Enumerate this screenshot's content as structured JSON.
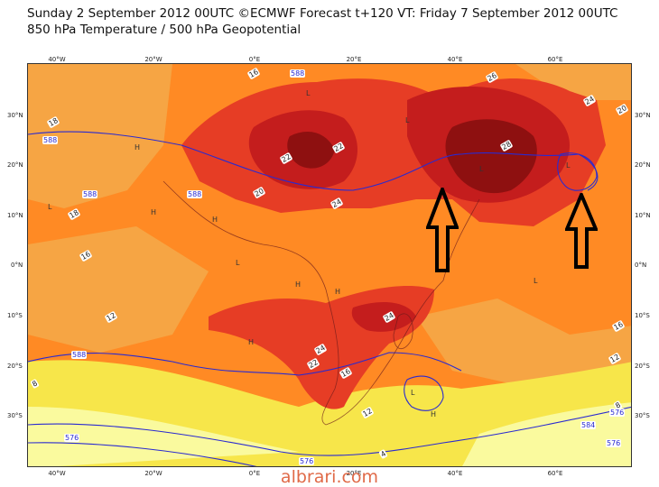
{
  "header": {
    "title_line1": "Sunday 2 September 2012 00UTC ©ECMWF Forecast t+120 VT: Friday 7 September 2012 00UTC",
    "title_line2": "850 hPa Temperature / 500 hPa Geopotential"
  },
  "axes": {
    "longitudes_top": [
      "40°W",
      "20°W",
      "0°E",
      "20°E",
      "40°E",
      "60°E"
    ],
    "longitudes_bottom": [
      "40°W",
      "20°W",
      "0°E",
      "20°E",
      "40°E",
      "60°E"
    ],
    "latitudes_left": [
      "30°N",
      "20°N",
      "10°N",
      "0°N",
      "10°S",
      "20°S",
      "30°S"
    ],
    "latitudes_right": [
      "30°N",
      "20°N",
      "10°N",
      "0°N",
      "10°S",
      "20°S",
      "30°S"
    ]
  },
  "contour_labels": {
    "temperature": [
      "16",
      "18",
      "18",
      "16",
      "12",
      "8",
      "20",
      "22",
      "22",
      "24",
      "26",
      "28",
      "24",
      "20",
      "24",
      "24",
      "22",
      "16",
      "12",
      "16",
      "12",
      "8",
      "4"
    ],
    "geopotential": [
      "588",
      "588",
      "588",
      "588",
      "588",
      "576",
      "576",
      "576",
      "576",
      "584"
    ]
  },
  "pressure_markers": [
    "H",
    "H",
    "H",
    "H",
    "H",
    "H",
    "H",
    "L",
    "L",
    "L",
    "L",
    "L",
    "L",
    "L",
    "L"
  ],
  "colors": {
    "ocean_cool": "#f2a035",
    "warm_orange": "#ff7a20",
    "hot_red": "#e63d25",
    "very_hot": "#c41d1d",
    "extreme": "#8e1010",
    "yellow_cold": "#f5e842",
    "pale_yellow": "#fafa9a",
    "contour_blue": "#2a2ad0",
    "arrow": "#000000"
  },
  "annotations": {
    "arrows": [
      "up-arrow-left",
      "up-arrow-right"
    ]
  },
  "watermark": "albrari.com"
}
